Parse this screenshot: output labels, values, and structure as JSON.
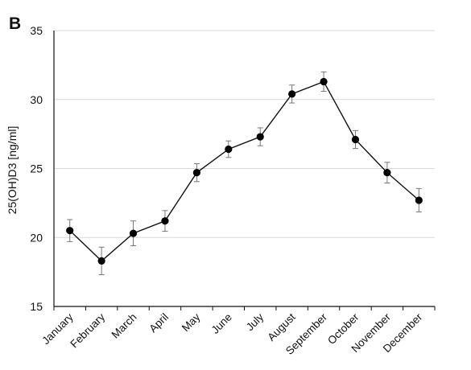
{
  "panel_label": "B",
  "chart_data": {
    "type": "line",
    "title": "",
    "xlabel": "",
    "ylabel": "25(OH)D3 [ng/ml]",
    "categories": [
      "January",
      "February",
      "March",
      "April",
      "May",
      "June",
      "July",
      "August",
      "September",
      "October",
      "November",
      "December"
    ],
    "ylim": [
      15,
      35
    ],
    "yticks": [
      15,
      20,
      25,
      30,
      35
    ],
    "grid": true,
    "series": [
      {
        "values": [
          20.5,
          18.3,
          20.3,
          21.2,
          24.7,
          26.4,
          27.3,
          30.4,
          31.3,
          27.1,
          24.7,
          22.7
        ],
        "error": [
          0.8,
          1.0,
          0.9,
          0.75,
          0.65,
          0.6,
          0.65,
          0.65,
          0.7,
          0.65,
          0.75,
          0.85
        ]
      }
    ],
    "colors": {
      "line": "#111111",
      "marker": "#000000",
      "error_bar": "#777777",
      "grid": "#d9d9d9",
      "axis": "#111111"
    }
  }
}
